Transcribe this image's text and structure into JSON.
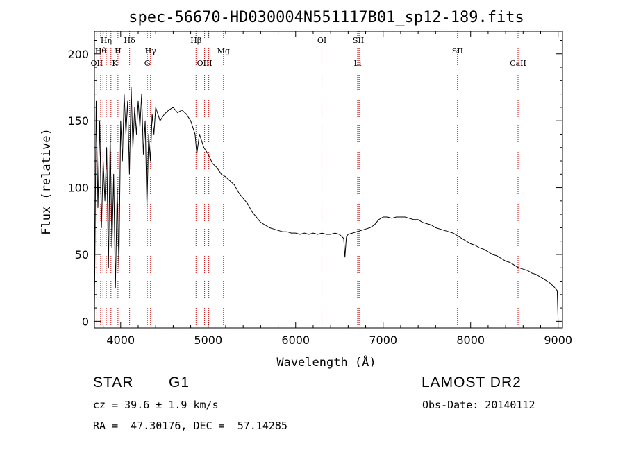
{
  "chart_data": {
    "type": "line",
    "title": "spec-56670-HD030004N551117B01_sp12-189.fits",
    "xlabel": "Wavelength (Å)",
    "ylabel": "Flux (relative)",
    "xlim": [
      3700,
      9050
    ],
    "ylim": [
      -5,
      217
    ],
    "x_ticks": [
      4000,
      5000,
      6000,
      7000,
      8000,
      9000
    ],
    "y_ticks": [
      0,
      50,
      100,
      150,
      200
    ],
    "grid": false,
    "line_color": "#000000",
    "marker_color": "#cc0000",
    "series": [
      {
        "x": [
          3700,
          3720,
          3740,
          3760,
          3780,
          3800,
          3820,
          3840,
          3860,
          3880,
          3900,
          3920,
          3940,
          3960,
          3980,
          4000,
          4020,
          4040,
          4060,
          4080,
          4100,
          4120,
          4140,
          4160,
          4180,
          4200,
          4220,
          4240,
          4260,
          4280,
          4300,
          4320,
          4340,
          4360,
          4380,
          4400,
          4450,
          4500,
          4550,
          4600,
          4650,
          4700,
          4750,
          4800,
          4850,
          4870,
          4900,
          4950,
          5000,
          5050,
          5100,
          5150,
          5200,
          5250,
          5300,
          5350,
          5400,
          5450,
          5500,
          5550,
          5600,
          5650,
          5700,
          5750,
          5800,
          5850,
          5900,
          5950,
          6000,
          6050,
          6100,
          6150,
          6200,
          6250,
          6300,
          6350,
          6400,
          6450,
          6500,
          6550,
          6563,
          6580,
          6600,
          6650,
          6700,
          6750,
          6800,
          6850,
          6900,
          6950,
          7000,
          7050,
          7100,
          7150,
          7200,
          7250,
          7300,
          7350,
          7400,
          7450,
          7500,
          7550,
          7600,
          7650,
          7700,
          7750,
          7800,
          7850,
          7900,
          7950,
          8000,
          8050,
          8100,
          8150,
          8200,
          8250,
          8300,
          8350,
          8400,
          8450,
          8500,
          8550,
          8600,
          8650,
          8700,
          8750,
          8800,
          8850,
          8900,
          8950,
          8990,
          9000
        ],
        "y": [
          5,
          165,
          85,
          150,
          70,
          120,
          90,
          130,
          40,
          140,
          55,
          110,
          25,
          100,
          40,
          150,
          120,
          170,
          140,
          165,
          110,
          175,
          130,
          160,
          140,
          165,
          145,
          170,
          125,
          150,
          85,
          140,
          120,
          155,
          140,
          160,
          150,
          155,
          158,
          160,
          156,
          158,
          155,
          150,
          140,
          125,
          140,
          130,
          125,
          118,
          115,
          110,
          108,
          105,
          102,
          96,
          92,
          88,
          82,
          78,
          74,
          72,
          70,
          69,
          68,
          67,
          67,
          66,
          66,
          65,
          66,
          65,
          66,
          65,
          66,
          65,
          65,
          66,
          65,
          62,
          48,
          63,
          65,
          66,
          67,
          68,
          69,
          70,
          72,
          76,
          78,
          78,
          77,
          78,
          78,
          78,
          77,
          76,
          76,
          74,
          73,
          72,
          70,
          69,
          68,
          67,
          66,
          64,
          62,
          60,
          58,
          57,
          55,
          54,
          52,
          50,
          49,
          47,
          45,
          44,
          42,
          40,
          39,
          38,
          36,
          35,
          33,
          31,
          29,
          26,
          23,
          0
        ]
      }
    ],
    "line_markers": [
      {
        "wavelength": 3727,
        "label": "OII",
        "row": 3
      },
      {
        "wavelength": 3771,
        "label": "Hθ",
        "row": 2
      },
      {
        "wavelength": 3798,
        "label": "",
        "row": 0
      },
      {
        "wavelength": 3835,
        "label": "Hη",
        "row": 1
      },
      {
        "wavelength": 3889,
        "label": "",
        "row": 0
      },
      {
        "wavelength": 3934,
        "label": "K",
        "row": 3
      },
      {
        "wavelength": 3969,
        "label": "H",
        "row": 2
      },
      {
        "wavelength": 4102,
        "label": "Hδ",
        "row": 1
      },
      {
        "wavelength": 4304,
        "label": "G",
        "row": 3
      },
      {
        "wavelength": 4341,
        "label": "Hγ",
        "row": 2
      },
      {
        "wavelength": 4861,
        "label": "Hβ",
        "row": 1
      },
      {
        "wavelength": 4959,
        "label": "OIII",
        "row": 3
      },
      {
        "wavelength": 5007,
        "label": "",
        "row": 0
      },
      {
        "wavelength": 5175,
        "label": "Mg",
        "row": 2
      },
      {
        "wavelength": 6300,
        "label": "OI",
        "row": 1
      },
      {
        "wavelength": 6708,
        "label": "Li",
        "row": 3
      },
      {
        "wavelength": 6717,
        "label": "SII",
        "row": 1
      },
      {
        "wavelength": 6731,
        "label": "",
        "row": 0
      },
      {
        "wavelength": 7850,
        "label": "SII",
        "row": 2
      },
      {
        "wavelength": 8542,
        "label": "CaII",
        "row": 3
      }
    ]
  },
  "info": {
    "class_label": "STAR",
    "subclass": "G1",
    "survey": "LAMOST DR2",
    "redshift": "cz = 39.6 ± 1.9 km/s",
    "obs_date": "Obs-Date: 20140112",
    "coords": "RA =  47.30176, DEC =  57.14285"
  }
}
